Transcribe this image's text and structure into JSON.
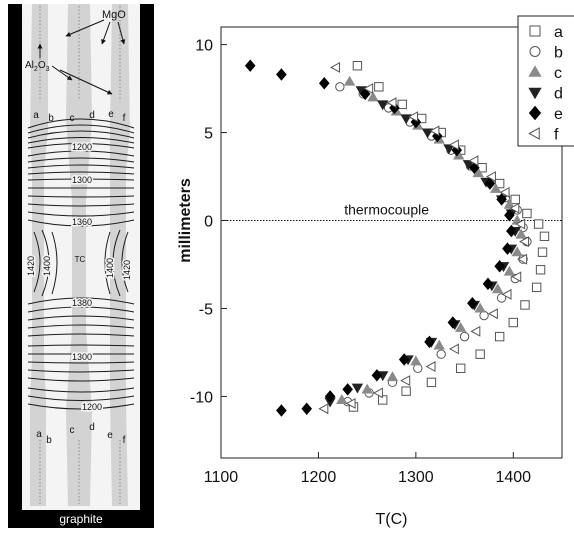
{
  "diagram": {
    "labels": {
      "mgo": "MgO",
      "al2o3_main": "Al",
      "al2o3_sub": "2",
      "al2o3_rest": "O",
      "al2o3_sub2": "3",
      "graphite": "graphite",
      "tc": "TC",
      "column_letters": [
        "a",
        "b",
        "c",
        "d",
        "e",
        "f"
      ]
    },
    "contours": [
      {
        "label": "1200",
        "side": "top"
      },
      {
        "label": "1300",
        "side": "top"
      },
      {
        "label": "1360",
        "side": "top"
      },
      {
        "label": "1420",
        "side": "left"
      },
      {
        "label": "1400",
        "side": "left"
      },
      {
        "label": "1400",
        "side": "right"
      },
      {
        "label": "1420",
        "side": "right"
      },
      {
        "label": "1380",
        "side": "bottom"
      },
      {
        "label": "1300",
        "side": "bottom"
      },
      {
        "label": "1200",
        "side": "bottom"
      }
    ],
    "colors": {
      "background": "#000000",
      "stripe": "#d4d4d4",
      "contour": "#111111"
    }
  },
  "chart_data": {
    "type": "scatter",
    "xlabel": "T(C)",
    "ylabel": "millimeters",
    "xlim": [
      1100,
      1450
    ],
    "ylim": [
      -13.5,
      11
    ],
    "xticks": [
      1100,
      1200,
      1300,
      1400
    ],
    "yticks": [
      10,
      5,
      0,
      -5,
      -10
    ],
    "grid": false,
    "legend_position": "top-right",
    "reference_line": {
      "y": 0,
      "label": "thermocouple"
    },
    "series": [
      {
        "name": "a",
        "marker": "square-open",
        "color": "#555555",
        "points": [
          [
            1240,
            8.8
          ],
          [
            1262,
            7.6
          ],
          [
            1286,
            6.6
          ],
          [
            1306,
            5.8
          ],
          [
            1326,
            5.0
          ],
          [
            1346,
            4.0
          ],
          [
            1368,
            3.0
          ],
          [
            1386,
            2.1
          ],
          [
            1402,
            1.2
          ],
          [
            1414,
            0.4
          ],
          [
            1426,
            -0.2
          ],
          [
            1432,
            -0.9
          ],
          [
            1430,
            -1.8
          ],
          [
            1428,
            -2.8
          ],
          [
            1424,
            -3.8
          ],
          [
            1412,
            -4.8
          ],
          [
            1400,
            -5.8
          ],
          [
            1386,
            -6.6
          ],
          [
            1366,
            -7.6
          ],
          [
            1346,
            -8.4
          ],
          [
            1316,
            -9.2
          ],
          [
            1290,
            -9.7
          ],
          [
            1266,
            -10.2
          ],
          [
            1236,
            -10.6
          ]
        ]
      },
      {
        "name": "b",
        "marker": "circle-open",
        "color": "#555555",
        "points": [
          [
            1222,
            7.6
          ],
          [
            1246,
            7.2
          ],
          [
            1272,
            6.4
          ],
          [
            1294,
            5.6
          ],
          [
            1316,
            4.8
          ],
          [
            1336,
            4.0
          ],
          [
            1356,
            3.1
          ],
          [
            1376,
            2.2
          ],
          [
            1392,
            1.3
          ],
          [
            1404,
            0.6
          ],
          [
            1410,
            -0.4
          ],
          [
            1414,
            -1.2
          ],
          [
            1410,
            -2.2
          ],
          [
            1402,
            -3.3
          ],
          [
            1388,
            -4.4
          ],
          [
            1370,
            -5.4
          ],
          [
            1350,
            -6.6
          ],
          [
            1326,
            -7.6
          ],
          [
            1302,
            -8.4
          ],
          [
            1276,
            -9.2
          ],
          [
            1252,
            -9.8
          ],
          [
            1230,
            -10.3
          ]
        ]
      },
      {
        "name": "c",
        "marker": "triangle-up",
        "color": "#8a8a8a",
        "points": [
          [
            1232,
            7.9
          ],
          [
            1256,
            7.0
          ],
          [
            1280,
            6.2
          ],
          [
            1302,
            5.4
          ],
          [
            1324,
            4.6
          ],
          [
            1344,
            3.7
          ],
          [
            1364,
            2.7
          ],
          [
            1382,
            1.8
          ],
          [
            1396,
            0.9
          ],
          [
            1404,
            0.0
          ],
          [
            1408,
            -0.8
          ],
          [
            1404,
            -1.8
          ],
          [
            1396,
            -2.9
          ],
          [
            1384,
            -3.9
          ],
          [
            1366,
            -5.0
          ],
          [
            1346,
            -6.1
          ],
          [
            1324,
            -7.1
          ],
          [
            1300,
            -8.0
          ],
          [
            1276,
            -8.9
          ],
          [
            1250,
            -9.6
          ],
          [
            1224,
            -10.2
          ]
        ]
      },
      {
        "name": "d",
        "marker": "triangle-down",
        "color": "#222222",
        "points": [
          [
            1244,
            7.4
          ],
          [
            1266,
            6.6
          ],
          [
            1290,
            5.8
          ],
          [
            1312,
            5.0
          ],
          [
            1334,
            4.1
          ],
          [
            1354,
            3.2
          ],
          [
            1372,
            2.2
          ],
          [
            1388,
            1.2
          ],
          [
            1398,
            0.4
          ],
          [
            1402,
            -0.6
          ],
          [
            1398,
            -1.6
          ],
          [
            1390,
            -2.6
          ],
          [
            1378,
            -3.7
          ],
          [
            1360,
            -4.8
          ],
          [
            1340,
            -5.9
          ],
          [
            1316,
            -6.9
          ],
          [
            1292,
            -7.9
          ],
          [
            1266,
            -8.8
          ],
          [
            1240,
            -9.5
          ],
          [
            1212,
            -10.3
          ]
        ]
      },
      {
        "name": "e",
        "marker": "diamond",
        "color": "#000000",
        "points": [
          [
            1130,
            8.8
          ],
          [
            1162,
            8.3
          ],
          [
            1206,
            7.8
          ],
          [
            1248,
            7.2
          ],
          [
            1278,
            6.4
          ],
          [
            1300,
            5.6
          ],
          [
            1322,
            4.8
          ],
          [
            1342,
            4.0
          ],
          [
            1360,
            3.0
          ],
          [
            1376,
            2.1
          ],
          [
            1388,
            1.2
          ],
          [
            1396,
            0.3
          ],
          [
            1398,
            -0.6
          ],
          [
            1394,
            -1.6
          ],
          [
            1386,
            -2.6
          ],
          [
            1374,
            -3.6
          ],
          [
            1358,
            -4.7
          ],
          [
            1338,
            -5.8
          ],
          [
            1314,
            -6.9
          ],
          [
            1288,
            -7.9
          ],
          [
            1260,
            -8.8
          ],
          [
            1230,
            -9.6
          ],
          [
            1212,
            -10.0
          ],
          [
            1188,
            -10.7
          ],
          [
            1162,
            -10.8
          ]
        ]
      },
      {
        "name": "f",
        "marker": "triangle-left",
        "color": "#555555",
        "points": [
          [
            1218,
            8.7
          ],
          [
            1252,
            7.5
          ],
          [
            1276,
            6.7
          ],
          [
            1298,
            5.9
          ],
          [
            1320,
            5.1
          ],
          [
            1340,
            4.3
          ],
          [
            1360,
            3.4
          ],
          [
            1378,
            2.5
          ],
          [
            1392,
            1.6
          ],
          [
            1402,
            0.7
          ],
          [
            1408,
            -0.2
          ],
          [
            1412,
            -1.2
          ],
          [
            1410,
            -2.2
          ],
          [
            1404,
            -3.2
          ],
          [
            1394,
            -4.2
          ],
          [
            1380,
            -5.3
          ],
          [
            1362,
            -6.3
          ],
          [
            1340,
            -7.3
          ],
          [
            1316,
            -8.3
          ],
          [
            1290,
            -9.1
          ],
          [
            1262,
            -9.8
          ],
          [
            1234,
            -10.4
          ],
          [
            1206,
            -10.7
          ]
        ]
      }
    ]
  }
}
